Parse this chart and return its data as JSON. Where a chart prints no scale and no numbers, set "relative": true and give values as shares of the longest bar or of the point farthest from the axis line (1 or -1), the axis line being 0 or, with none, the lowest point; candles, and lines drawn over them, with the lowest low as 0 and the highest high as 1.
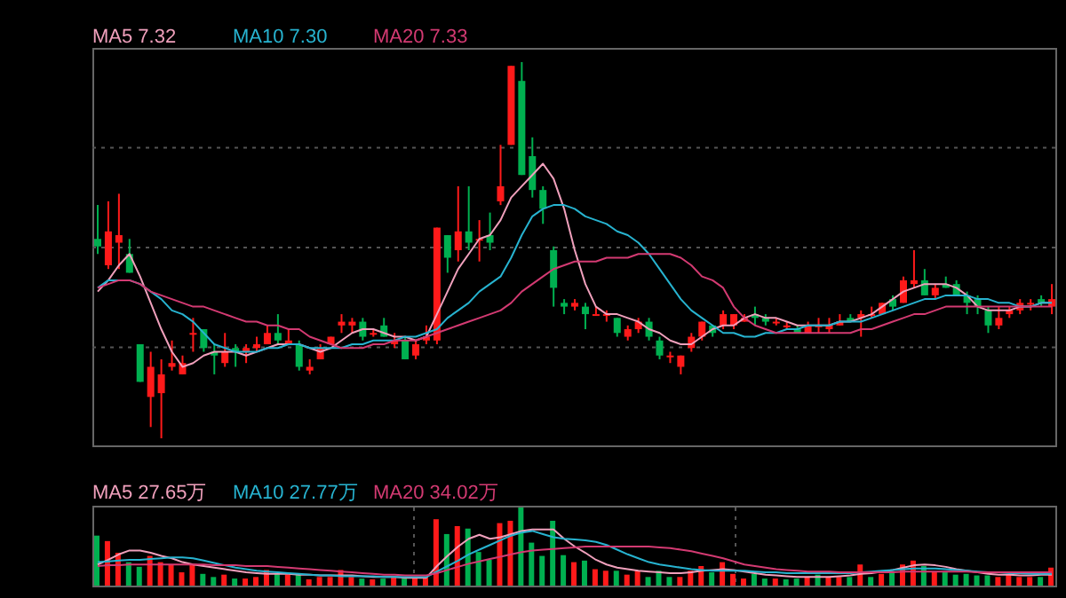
{
  "chart_data": [
    {
      "type": "candlestick",
      "relative": true,
      "tick_labels": false,
      "grid": "y",
      "legend": "top left",
      "marker": "none",
      "line_style": "solid",
      "categories": [
        null,
        null,
        null,
        null,
        null,
        null,
        null,
        null,
        null,
        null,
        null,
        null,
        null,
        null,
        null,
        null,
        null,
        null,
        null,
        null,
        null,
        null,
        null,
        null,
        null,
        null,
        null,
        null,
        null,
        null,
        null,
        null,
        null,
        null,
        null,
        null,
        null,
        null,
        null,
        null,
        null,
        null,
        null,
        null,
        null,
        null,
        null,
        null,
        null,
        null,
        null,
        null,
        null,
        null,
        null,
        null,
        null,
        null,
        null,
        null,
        null,
        null,
        null,
        null,
        null,
        null,
        null,
        null,
        null,
        null,
        null,
        null,
        null,
        null,
        null,
        null,
        null,
        null,
        null,
        null,
        null,
        null,
        null,
        null,
        null,
        null,
        null,
        null,
        null,
        null,
        null
      ],
      "ohlc": [
        [
          0.53,
          0.62,
          0.49,
          0.51
        ],
        [
          0.46,
          0.63,
          0.45,
          0.55
        ],
        [
          0.52,
          0.65,
          0.45,
          0.54
        ],
        [
          0.49,
          0.53,
          0.44,
          0.44
        ],
        [
          0.25,
          0.25,
          0.15,
          0.15
        ],
        [
          0.11,
          0.23,
          0.03,
          0.19
        ],
        [
          0.12,
          0.21,
          0,
          0.17
        ],
        [
          0.19,
          0.26,
          0.18,
          0.2
        ],
        [
          0.17,
          0.22,
          0.17,
          0.2
        ],
        [
          0.28,
          0.32,
          0.23,
          0.28
        ],
        [
          0.29,
          0.29,
          0.23,
          0.24
        ],
        [
          0.23,
          0.25,
          0.17,
          0.22
        ],
        [
          0.2,
          0.28,
          0.19,
          0.23
        ],
        [
          0.24,
          0.25,
          0.19,
          0.23
        ],
        [
          0.23,
          0.25,
          0.2,
          0.24
        ],
        [
          0.24,
          0.27,
          0.23,
          0.25
        ],
        [
          0.25,
          0.3,
          0.25,
          0.28
        ],
        [
          0.28,
          0.33,
          0.25,
          0.26
        ],
        [
          0.25,
          0.29,
          0.25,
          0.26
        ],
        [
          0.25,
          0.26,
          0.18,
          0.19
        ],
        [
          0.18,
          0.21,
          0.17,
          0.19
        ],
        [
          0.21,
          0.25,
          0.21,
          0.24
        ],
        [
          0.25,
          0.27,
          0.25,
          0.27
        ],
        [
          0.3,
          0.33,
          0.28,
          0.31
        ],
        [
          0.3,
          0.32,
          0.28,
          0.31
        ],
        [
          0.31,
          0.32,
          0.26,
          0.27
        ],
        [
          0.28,
          0.29,
          0.27,
          0.28
        ],
        [
          0.3,
          0.32,
          0.27,
          0.27
        ],
        [
          0.25,
          0.28,
          0.24,
          0.26
        ],
        [
          0.26,
          0.27,
          0.21,
          0.21
        ],
        [
          0.22,
          0.26,
          0.21,
          0.25
        ],
        [
          0.26,
          0.3,
          0.25,
          0.27
        ],
        [
          0.26,
          0.56,
          0.25,
          0.56
        ],
        [
          0.54,
          0.54,
          0.44,
          0.48
        ],
        [
          0.5,
          0.67,
          0.47,
          0.55
        ],
        [
          0.55,
          0.67,
          0.5,
          0.52
        ],
        [
          0.53,
          0.58,
          0.47,
          0.53
        ],
        [
          0.54,
          0.6,
          0.5,
          0.52
        ],
        [
          0.63,
          0.78,
          0.62,
          0.67
        ],
        [
          0.78,
          0.99,
          0.78,
          0.99
        ],
        [
          0.95,
          1,
          0.7,
          0.7
        ],
        [
          0.75,
          0.8,
          0.64,
          0.66
        ],
        [
          0.66,
          0.67,
          0.57,
          0.61
        ],
        [
          0.5,
          0.51,
          0.35,
          0.4
        ],
        [
          0.36,
          0.37,
          0.33,
          0.35
        ],
        [
          0.35,
          0.37,
          0.34,
          0.36
        ],
        [
          0.35,
          0.36,
          0.29,
          0.33
        ],
        [
          0.33,
          0.35,
          0.33,
          0.33
        ],
        [
          0.33,
          0.34,
          0.31,
          0.33
        ],
        [
          0.32,
          0.32,
          0.27,
          0.28
        ],
        [
          0.27,
          0.3,
          0.26,
          0.29
        ],
        [
          0.29,
          0.32,
          0.28,
          0.31
        ],
        [
          0.31,
          0.32,
          0.26,
          0.27
        ],
        [
          0.26,
          0.27,
          0.21,
          0.22
        ],
        [
          0.22,
          0.23,
          0.2,
          0.22
        ],
        [
          0.19,
          0.22,
          0.17,
          0.22
        ],
        [
          0.24,
          0.28,
          0.23,
          0.27
        ],
        [
          0.27,
          0.31,
          0.26,
          0.31
        ],
        [
          0.3,
          0.3,
          0.27,
          0.28
        ],
        [
          0.3,
          0.34,
          0.29,
          0.33
        ],
        [
          0.3,
          0.33,
          0.29,
          0.33
        ],
        [
          0.31,
          0.33,
          0.31,
          0.32
        ],
        [
          0.33,
          0.35,
          0.3,
          0.32
        ],
        [
          0.32,
          0.33,
          0.3,
          0.31
        ],
        [
          0.31,
          0.32,
          0.3,
          0.31
        ],
        [
          0.3,
          0.31,
          0.29,
          0.3
        ],
        [
          0.29,
          0.3,
          0.28,
          0.28
        ],
        [
          0.28,
          0.31,
          0.28,
          0.3
        ],
        [
          0.3,
          0.32,
          0.28,
          0.3
        ],
        [
          0.29,
          0.32,
          0.28,
          0.3
        ],
        [
          0.3,
          0.33,
          0.3,
          0.31
        ],
        [
          0.32,
          0.33,
          0.31,
          0.31
        ],
        [
          0.32,
          0.34,
          0.27,
          0.33
        ],
        [
          0.33,
          0.35,
          0.32,
          0.33
        ],
        [
          0.33,
          0.36,
          0.33,
          0.36
        ],
        [
          0.37,
          0.38,
          0.34,
          0.35
        ],
        [
          0.36,
          0.43,
          0.36,
          0.42
        ],
        [
          0.41,
          0.5,
          0.4,
          0.42
        ],
        [
          0.42,
          0.45,
          0.38,
          0.38
        ],
        [
          0.38,
          0.41,
          0.37,
          0.4
        ],
        [
          0.41,
          0.43,
          0.4,
          0.4
        ],
        [
          0.41,
          0.42,
          0.38,
          0.38
        ],
        [
          0.38,
          0.39,
          0.33,
          0.36
        ],
        [
          0.37,
          0.38,
          0.33,
          0.35
        ],
        [
          0.34,
          0.35,
          0.28,
          0.3
        ],
        [
          0.3,
          0.35,
          0.29,
          0.32
        ],
        [
          0.33,
          0.35,
          0.32,
          0.34
        ],
        [
          0.34,
          0.37,
          0.33,
          0.36
        ],
        [
          0.36,
          0.37,
          0.34,
          0.36
        ],
        [
          0.37,
          0.38,
          0.35,
          0.36
        ],
        [
          0.35,
          0.41,
          0.33,
          0.37
        ]
      ],
      "series": [
        {
          "name": "MA5 7.32",
          "type": "line",
          "color": "#f0a0bc",
          "values": [
            0.39,
            0.42,
            0.46,
            0.49,
            0.43,
            0.36,
            0.29,
            0.23,
            0.19,
            0.2,
            0.22,
            0.23,
            0.23,
            0.23,
            0.22,
            0.23,
            0.24,
            0.25,
            0.25,
            0.25,
            0.24,
            0.23,
            0.24,
            0.26,
            0.28,
            0.29,
            0.29,
            0.28,
            0.27,
            0.27,
            0.26,
            0.27,
            0.33,
            0.39,
            0.45,
            0.49,
            0.53,
            0.54,
            0.58,
            0.64,
            0.67,
            0.7,
            0.73,
            0.69,
            0.61,
            0.5,
            0.41,
            0.35,
            0.33,
            0.33,
            0.32,
            0.31,
            0.29,
            0.28,
            0.26,
            0.25,
            0.25,
            0.27,
            0.29,
            0.3,
            0.3,
            0.32,
            0.33,
            0.32,
            0.32,
            0.31,
            0.3,
            0.3,
            0.3,
            0.3,
            0.31,
            0.31,
            0.32,
            0.33,
            0.35,
            0.37,
            0.39,
            0.4,
            0.41,
            0.41,
            0.41,
            0.4,
            0.38,
            0.35,
            0.34,
            0.34,
            0.34,
            0.35,
            0.35,
            0.36,
            0.36
          ]
        },
        {
          "name": "MA10 7.30",
          "type": "line",
          "color": "#27b3d0",
          "values": [
            0.4,
            0.42,
            0.42,
            0.42,
            0.41,
            0.39,
            0.37,
            0.34,
            0.33,
            0.31,
            0.28,
            0.25,
            0.24,
            0.23,
            0.23,
            0.23,
            0.24,
            0.24,
            0.25,
            0.25,
            0.24,
            0.24,
            0.24,
            0.24,
            0.25,
            0.25,
            0.26,
            0.26,
            0.26,
            0.27,
            0.27,
            0.28,
            0.29,
            0.32,
            0.34,
            0.36,
            0.39,
            0.41,
            0.43,
            0.48,
            0.54,
            0.59,
            0.61,
            0.62,
            0.62,
            0.61,
            0.59,
            0.58,
            0.57,
            0.55,
            0.54,
            0.52,
            0.49,
            0.45,
            0.41,
            0.37,
            0.34,
            0.32,
            0.3,
            0.28,
            0.28,
            0.27,
            0.27,
            0.28,
            0.28,
            0.29,
            0.29,
            0.3,
            0.3,
            0.3,
            0.31,
            0.31,
            0.31,
            0.32,
            0.33,
            0.34,
            0.35,
            0.36,
            0.37,
            0.37,
            0.38,
            0.38,
            0.38,
            0.37,
            0.37,
            0.36,
            0.36,
            0.35,
            0.35,
            0.36,
            0.36
          ]
        },
        {
          "name": "MA20 7.33",
          "type": "line",
          "color": "#d33a72",
          "values": [
            0.4,
            0.41,
            0.42,
            0.42,
            0.41,
            0.39,
            0.38,
            0.37,
            0.36,
            0.35,
            0.35,
            0.34,
            0.33,
            0.32,
            0.31,
            0.31,
            0.3,
            0.3,
            0.29,
            0.29,
            0.27,
            0.26,
            0.25,
            0.24,
            0.24,
            0.24,
            0.25,
            0.25,
            0.26,
            0.26,
            0.26,
            0.27,
            0.28,
            0.29,
            0.3,
            0.31,
            0.32,
            0.33,
            0.34,
            0.36,
            0.39,
            0.41,
            0.43,
            0.45,
            0.46,
            0.47,
            0.47,
            0.47,
            0.48,
            0.48,
            0.48,
            0.49,
            0.49,
            0.49,
            0.49,
            0.48,
            0.46,
            0.43,
            0.42,
            0.4,
            0.35,
            0.32,
            0.3,
            0.29,
            0.28,
            0.28,
            0.28,
            0.28,
            0.28,
            0.28,
            0.28,
            0.28,
            0.29,
            0.29,
            0.3,
            0.31,
            0.32,
            0.33,
            0.33,
            0.34,
            0.35,
            0.35,
            0.35,
            0.35,
            0.35,
            0.35,
            0.35,
            0.35,
            0.35,
            0.35,
            0.35
          ]
        }
      ]
    },
    {
      "type": "bar",
      "relative": true,
      "tick_labels": false,
      "grid": "x",
      "legend": "top left",
      "marker": "none",
      "line_style": "solid",
      "categories": [
        null,
        null,
        null,
        null,
        null,
        null,
        null,
        null,
        null,
        null,
        null,
        null,
        null,
        null,
        null,
        null,
        null,
        null,
        null,
        null,
        null,
        null,
        null,
        null,
        null,
        null,
        null,
        null,
        null,
        null,
        null,
        null,
        null,
        null,
        null,
        null,
        null,
        null,
        null,
        null,
        null,
        null,
        null,
        null,
        null,
        null,
        null,
        null,
        null,
        null,
        null,
        null,
        null,
        null,
        null,
        null,
        null,
        null,
        null,
        null,
        null,
        null,
        null,
        null,
        null,
        null,
        null,
        null,
        null,
        null,
        null,
        null,
        null,
        null,
        null,
        null,
        null,
        null,
        null,
        null,
        null,
        null,
        null,
        null,
        null,
        null,
        null,
        null,
        null,
        null,
        null
      ],
      "series": [
        {
          "type": "bar",
          "values": [
            0.64,
            0.57,
            0.42,
            0.3,
            0.24,
            0.38,
            0.3,
            0.27,
            0.17,
            0.27,
            0.15,
            0.11,
            0.14,
            0.09,
            0.09,
            0.11,
            0.2,
            0.15,
            0.14,
            0.14,
            0.08,
            0.11,
            0.11,
            0.2,
            0.11,
            0.09,
            0.08,
            0.09,
            0.11,
            0.09,
            0.11,
            0.11,
            0.85,
            0.66,
            0.76,
            0.73,
            0.43,
            0.33,
            0.8,
            0.83,
            1,
            0.55,
            0.38,
            0.83,
            0.39,
            0.3,
            0.32,
            0.21,
            0.19,
            0.19,
            0.14,
            0.19,
            0.11,
            0.19,
            0.11,
            0.11,
            0.19,
            0.25,
            0.17,
            0.3,
            0.15,
            0.09,
            0.15,
            0.09,
            0.09,
            0.08,
            0.09,
            0.11,
            0.14,
            0.11,
            0.11,
            0.11,
            0.27,
            0.11,
            0.15,
            0.17,
            0.27,
            0.32,
            0.25,
            0.18,
            0.17,
            0.14,
            0.15,
            0.13,
            0.13,
            0.11,
            0.14,
            0.11,
            0.11,
            0.11,
            0.23
          ],
          "colors": [
            "#00b050",
            "#ff1a1a",
            "#ff1a1a",
            "#00b050",
            "#00b050",
            "#ff1a1a",
            "#ff1a1a",
            "#ff1a1a",
            "#ff1a1a",
            "#ff1a1a",
            "#00b050",
            "#00b050",
            "#ff1a1a",
            "#00b050",
            "#ff1a1a",
            "#ff1a1a",
            "#ff1a1a",
            "#00b050",
            "#ff1a1a",
            "#00b050",
            "#ff1a1a",
            "#ff1a1a",
            "#ff1a1a",
            "#ff1a1a",
            "#ff1a1a",
            "#00b050",
            "#ff1a1a",
            "#00b050",
            "#ff1a1a",
            "#00b050",
            "#ff1a1a",
            "#ff1a1a",
            "#ff1a1a",
            "#00b050",
            "#ff1a1a",
            "#00b050",
            "#00b050",
            "#00b050",
            "#ff1a1a",
            "#ff1a1a",
            "#00b050",
            "#00b050",
            "#00b050",
            "#00b050",
            "#00b050",
            "#ff1a1a",
            "#00b050",
            "#ff1a1a",
            "#ff1a1a",
            "#00b050",
            "#ff1a1a",
            "#ff1a1a",
            "#00b050",
            "#00b050",
            "#00b050",
            "#ff1a1a",
            "#ff1a1a",
            "#ff1a1a",
            "#00b050",
            "#ff1a1a",
            "#ff1a1a",
            "#ff1a1a",
            "#00b050",
            "#00b050",
            "#ff1a1a",
            "#00b050",
            "#00b050",
            "#ff1a1a",
            "#00b050",
            "#ff1a1a",
            "#ff1a1a",
            "#00b050",
            "#ff1a1a",
            "#00b050",
            "#ff1a1a",
            "#00b050",
            "#ff1a1a",
            "#ff1a1a",
            "#00b050",
            "#ff1a1a",
            "#00b050",
            "#00b050",
            "#00b050",
            "#00b050",
            "#00b050",
            "#ff1a1a",
            "#ff1a1a",
            "#ff1a1a",
            "#ff1a1a",
            "#00b050",
            "#ff1a1a"
          ]
        },
        {
          "name": "MA5 27.65万",
          "type": "line",
          "color": "#f0a0bc",
          "values": [
            0.27,
            0.33,
            0.4,
            0.45,
            0.45,
            0.42,
            0.38,
            0.35,
            0.3,
            0.27,
            0.25,
            0.23,
            0.21,
            0.19,
            0.17,
            0.16,
            0.15,
            0.15,
            0.15,
            0.14,
            0.14,
            0.13,
            0.13,
            0.13,
            0.13,
            0.12,
            0.11,
            0.11,
            0.11,
            0.1,
            0.1,
            0.1,
            0.25,
            0.38,
            0.5,
            0.6,
            0.65,
            0.6,
            0.62,
            0.66,
            0.7,
            0.72,
            0.72,
            0.72,
            0.6,
            0.5,
            0.42,
            0.33,
            0.27,
            0.23,
            0.21,
            0.19,
            0.18,
            0.17,
            0.16,
            0.16,
            0.17,
            0.19,
            0.2,
            0.21,
            0.2,
            0.18,
            0.16,
            0.14,
            0.13,
            0.12,
            0.11,
            0.11,
            0.11,
            0.11,
            0.12,
            0.13,
            0.15,
            0.16,
            0.18,
            0.2,
            0.23,
            0.26,
            0.27,
            0.26,
            0.24,
            0.21,
            0.19,
            0.17,
            0.15,
            0.14,
            0.14,
            0.13,
            0.13,
            0.14,
            0.14
          ]
        },
        {
          "name": "MA10 27.77万",
          "type": "line",
          "color": "#27b3d0",
          "values": [
            0.3,
            0.31,
            0.32,
            0.33,
            0.33,
            0.34,
            0.35,
            0.36,
            0.36,
            0.35,
            0.32,
            0.29,
            0.26,
            0.23,
            0.21,
            0.19,
            0.18,
            0.17,
            0.16,
            0.15,
            0.14,
            0.13,
            0.13,
            0.12,
            0.12,
            0.12,
            0.12,
            0.11,
            0.11,
            0.11,
            0.11,
            0.11,
            0.18,
            0.25,
            0.32,
            0.4,
            0.46,
            0.52,
            0.58,
            0.64,
            0.68,
            0.7,
            0.66,
            0.62,
            0.6,
            0.59,
            0.58,
            0.56,
            0.52,
            0.46,
            0.4,
            0.35,
            0.3,
            0.27,
            0.25,
            0.23,
            0.21,
            0.2,
            0.19,
            0.19,
            0.19,
            0.19,
            0.18,
            0.17,
            0.17,
            0.16,
            0.16,
            0.16,
            0.16,
            0.16,
            0.16,
            0.16,
            0.17,
            0.18,
            0.19,
            0.2,
            0.21,
            0.22,
            0.22,
            0.22,
            0.21,
            0.2,
            0.19,
            0.18,
            0.17,
            0.17,
            0.16,
            0.16,
            0.15,
            0.15,
            0.15
          ]
        },
        {
          "name": "MA20 34.02万",
          "type": "line",
          "color": "#d33a72",
          "values": [
            0.25,
            0.26,
            0.26,
            0.27,
            0.27,
            0.27,
            0.27,
            0.27,
            0.27,
            0.27,
            0.27,
            0.26,
            0.26,
            0.26,
            0.25,
            0.25,
            0.25,
            0.24,
            0.23,
            0.22,
            0.21,
            0.2,
            0.19,
            0.18,
            0.17,
            0.16,
            0.15,
            0.14,
            0.14,
            0.13,
            0.13,
            0.13,
            0.16,
            0.2,
            0.24,
            0.28,
            0.31,
            0.34,
            0.37,
            0.4,
            0.43,
            0.45,
            0.46,
            0.47,
            0.48,
            0.49,
            0.5,
            0.5,
            0.5,
            0.5,
            0.5,
            0.5,
            0.5,
            0.49,
            0.48,
            0.46,
            0.44,
            0.41,
            0.38,
            0.35,
            0.31,
            0.27,
            0.25,
            0.23,
            0.21,
            0.2,
            0.19,
            0.18,
            0.18,
            0.18,
            0.17,
            0.17,
            0.17,
            0.17,
            0.17,
            0.17,
            0.18,
            0.18,
            0.18,
            0.18,
            0.18,
            0.18,
            0.18,
            0.17,
            0.17,
            0.17,
            0.17,
            0.17,
            0.17,
            0.17,
            0.17
          ]
        }
      ]
    }
  ]
}
